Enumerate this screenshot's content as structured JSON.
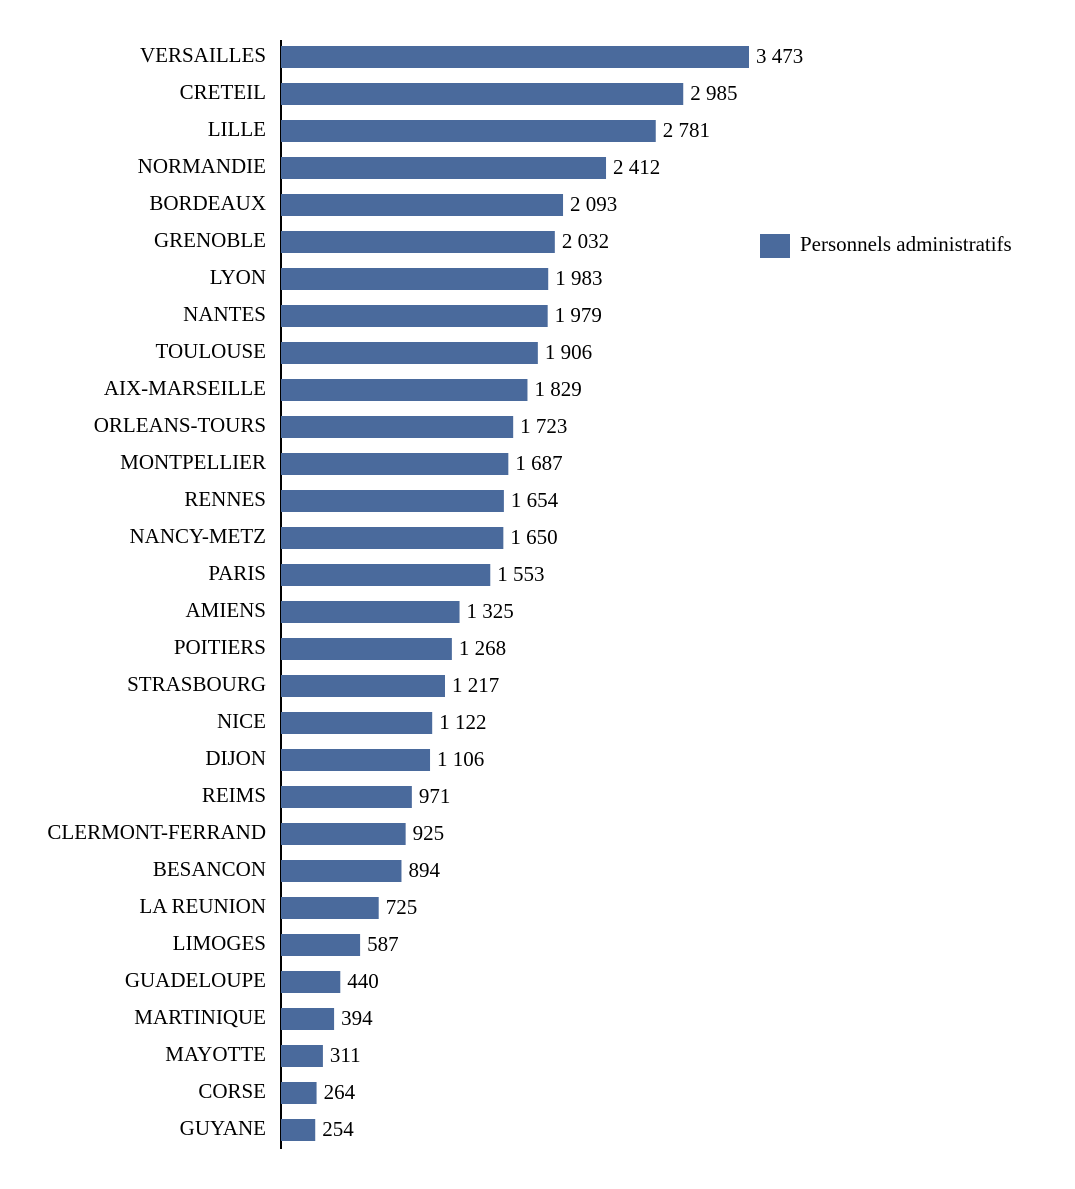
{
  "chart_data": {
    "type": "bar",
    "categories": [
      "VERSAILLES",
      "CRETEIL",
      "LILLE",
      "NORMANDIE",
      "BORDEAUX",
      "GRENOBLE",
      "LYON",
      "NANTES",
      "TOULOUSE",
      "AIX-MARSEILLE",
      "ORLEANS-TOURS",
      "MONTPELLIER",
      "RENNES",
      "NANCY-METZ",
      "PARIS",
      "AMIENS",
      "POITIERS",
      "STRASBOURG",
      "NICE",
      "DIJON",
      "REIMS",
      "CLERMONT-FERRAND",
      "BESANCON",
      "LA REUNION",
      "LIMOGES",
      "GUADELOUPE",
      "MARTINIQUE",
      "MAYOTTE",
      "CORSE",
      "GUYANE"
    ],
    "series": [
      {
        "name": "Personnels administratifs",
        "color": "#4a6a9c",
        "values": [
          3473,
          2985,
          2781,
          2412,
          2093,
          2032,
          1983,
          1979,
          1906,
          1829,
          1723,
          1687,
          1654,
          1650,
          1553,
          1325,
          1268,
          1217,
          1122,
          1106,
          971,
          925,
          894,
          725,
          587,
          440,
          394,
          311,
          264,
          254
        ],
        "value_labels": [
          "3 473",
          "2 985",
          "2 781",
          "2 412",
          "2 093",
          "2 032",
          "1 983",
          "1 979",
          "1 906",
          "1 829",
          "1 723",
          "1 687",
          "1 654",
          "1 650",
          "1 553",
          "1 325",
          "1 268",
          "1 217",
          "1 122",
          "1 106",
          "971",
          "925",
          "894",
          "725",
          "587",
          "440",
          "394",
          "311",
          "264",
          "254"
        ]
      }
    ],
    "legend": "right"
  }
}
